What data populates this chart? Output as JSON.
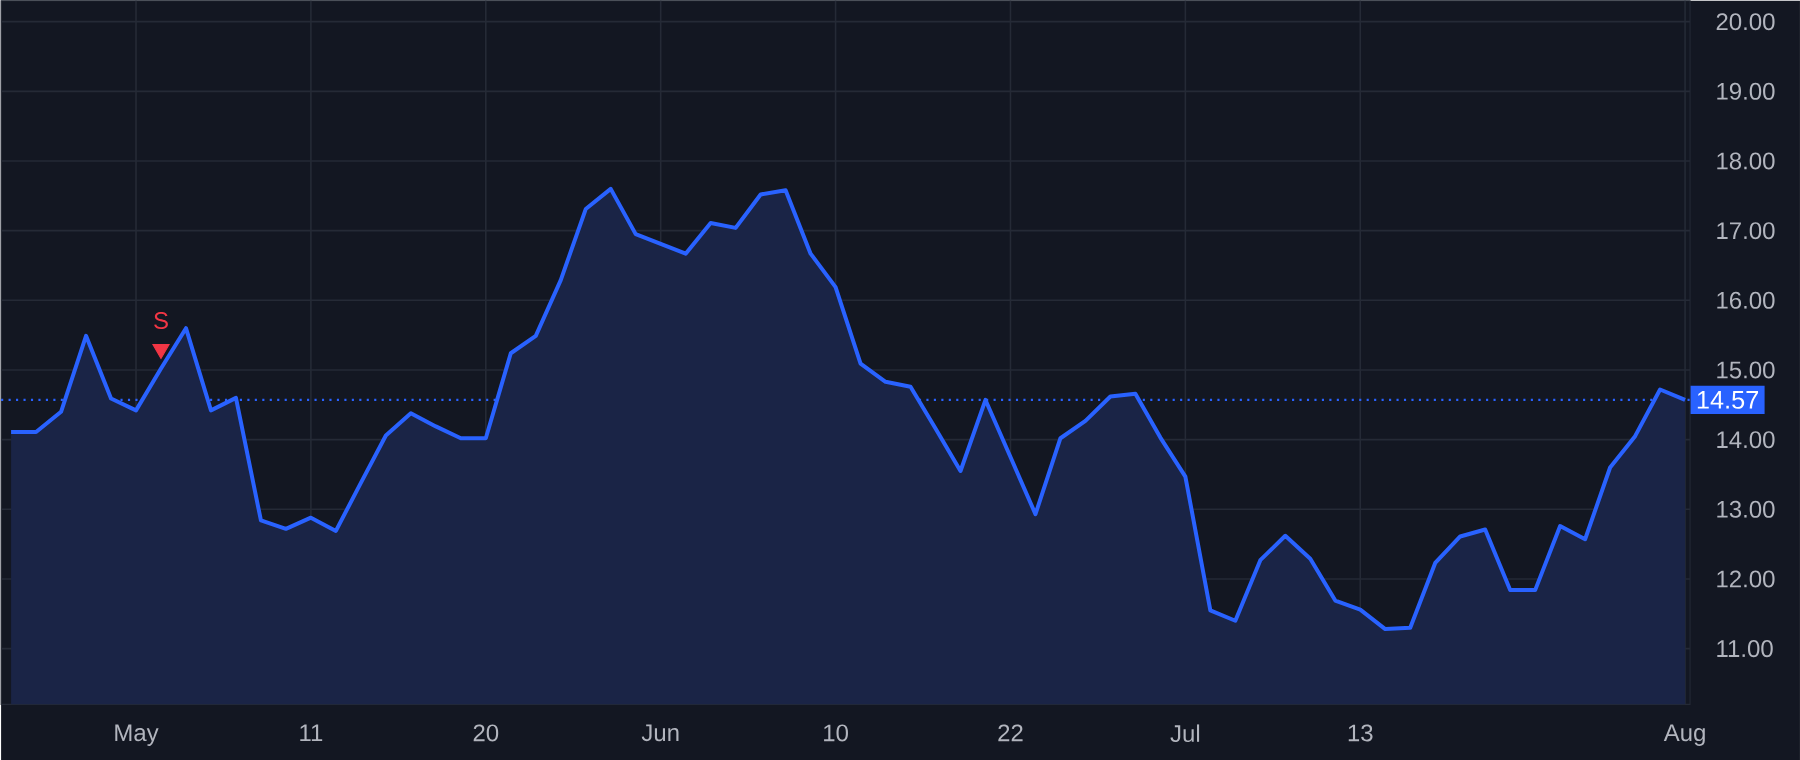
{
  "chart_data": {
    "type": "area",
    "categories": [
      null,
      null,
      null,
      null,
      null,
      "May",
      null,
      null,
      null,
      null,
      null,
      null,
      "11",
      null,
      null,
      null,
      null,
      null,
      null,
      "20",
      null,
      null,
      null,
      null,
      null,
      null,
      "Jun",
      null,
      null,
      null,
      null,
      null,
      null,
      "10",
      null,
      null,
      null,
      null,
      null,
      null,
      "22",
      null,
      null,
      null,
      null,
      null,
      null,
      "Jul",
      null,
      null,
      null,
      null,
      null,
      null,
      "13",
      null,
      null,
      null,
      null,
      null,
      null,
      null,
      null,
      null,
      null,
      null,
      null,
      "Aug"
    ],
    "series": [
      {
        "color": "#2962ff",
        "values": [
          14.11,
          14.11,
          14.4,
          15.49,
          14.59,
          14.42,
          15.02,
          15.6,
          14.42,
          14.6,
          12.84,
          12.72,
          12.88,
          12.69,
          13.38,
          14.06,
          14.38,
          14.19,
          14.02,
          14.02,
          15.24,
          15.49,
          16.29,
          17.31,
          17.6,
          16.95,
          16.81,
          16.67,
          17.11,
          17.04,
          17.52,
          17.58,
          16.67,
          16.19,
          15.09,
          14.83,
          14.76,
          14.16,
          13.55,
          14.57,
          13.75,
          12.93,
          14.02,
          14.27,
          14.62,
          14.66,
          14.03,
          13.47,
          11.55,
          11.4,
          12.27,
          12.62,
          12.29,
          11.69,
          11.56,
          11.28,
          11.3,
          12.23,
          12.61,
          12.71,
          11.84,
          11.84,
          12.76,
          12.57,
          13.6,
          14.05,
          14.72,
          14.57
        ]
      },
      {
        "type": "scatter",
        "name": "S",
        "color": "#f23645",
        "marker": "triangle",
        "values": [
          null,
          null,
          null,
          null,
          null,
          null,
          15.3,
          null,
          null,
          null,
          null,
          null,
          null,
          null,
          null,
          null,
          null,
          null,
          null,
          null,
          null,
          null,
          null,
          null,
          null,
          null,
          null,
          null,
          null,
          null,
          null,
          null,
          null,
          null,
          null,
          null,
          null,
          null,
          null,
          null,
          null,
          null,
          null,
          null,
          null,
          null,
          null,
          null,
          null,
          null,
          null,
          null,
          null,
          null,
          null,
          null,
          null,
          null,
          null,
          null,
          null,
          null,
          null,
          null,
          null,
          null,
          null,
          null
        ]
      }
    ],
    "ylim": [
      10.2,
      20.3
    ],
    "yticks": [
      {
        "value": 11,
        "label": "11.00"
      },
      {
        "value": 12,
        "label": "12.00"
      },
      {
        "value": 13,
        "label": "13.00"
      },
      {
        "value": 14,
        "label": "14.00"
      },
      {
        "value": 15,
        "label": "15.00"
      },
      {
        "value": 16,
        "label": "16.00"
      },
      {
        "value": 17,
        "label": "17.00"
      },
      {
        "value": 18,
        "label": "18.00"
      },
      {
        "value": 19,
        "label": "19.00"
      },
      {
        "value": 20,
        "label": "20.00"
      }
    ],
    "grid": true,
    "ref_lines": [
      {
        "axis": "y",
        "value": 14.57,
        "label": "14.57",
        "color": "#2962ff",
        "line_style": "dotted"
      }
    ]
  }
}
